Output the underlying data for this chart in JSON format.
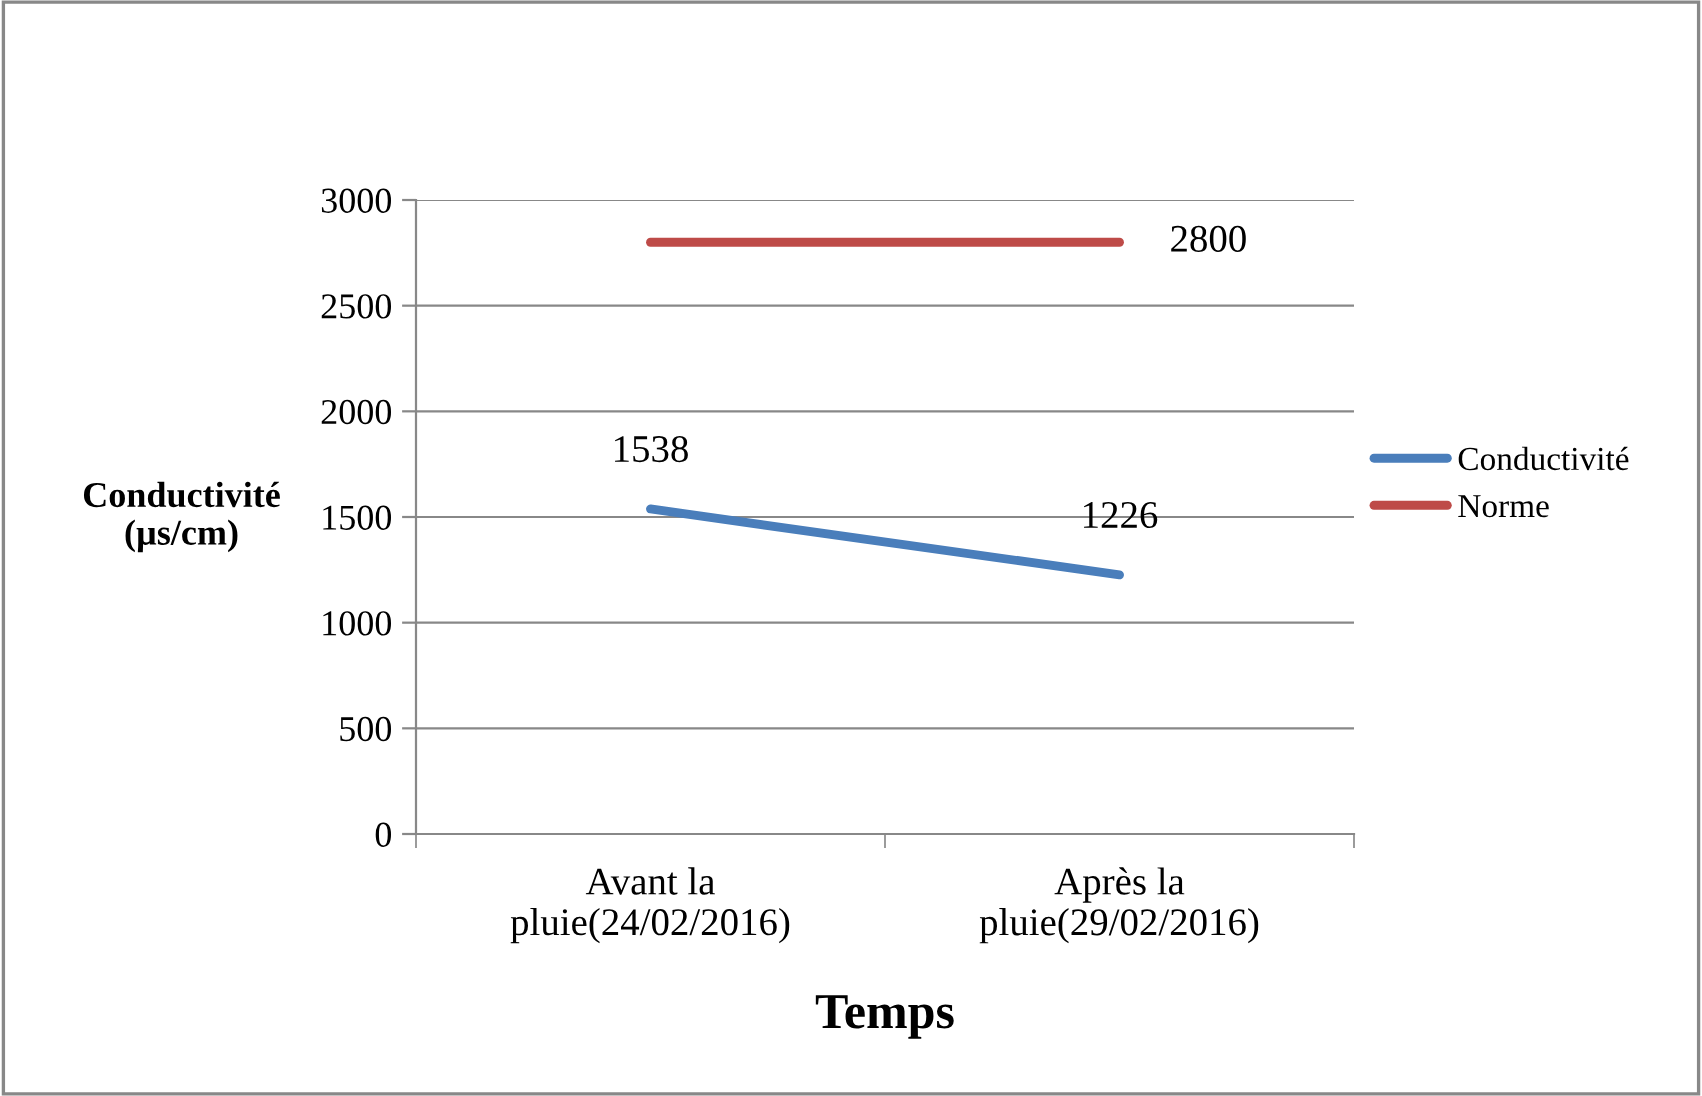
{
  "chart_data": {
    "type": "line",
    "xlabel": "Temps",
    "ylabel": "Conductivité\n(µs/cm)",
    "categories": [
      "Avant la\npluie(24/02/2016)",
      "Après la\npluie(29/02/2016)"
    ],
    "series": [
      {
        "name": "Conductivité",
        "color": "#4a7ebb",
        "values": [
          1538,
          1226
        ],
        "value_labels": [
          "1538",
          "1226"
        ]
      },
      {
        "name": "Norme",
        "color": "#be4b48",
        "values": [
          2800,
          2800
        ],
        "value_labels": [
          null,
          "2800"
        ]
      }
    ],
    "ylim": [
      0,
      3000
    ],
    "yticks": [
      0,
      500,
      1000,
      1500,
      2000,
      2500,
      3000
    ],
    "grid": "y",
    "legend": "right",
    "marker": "none",
    "line_style": "solid"
  }
}
